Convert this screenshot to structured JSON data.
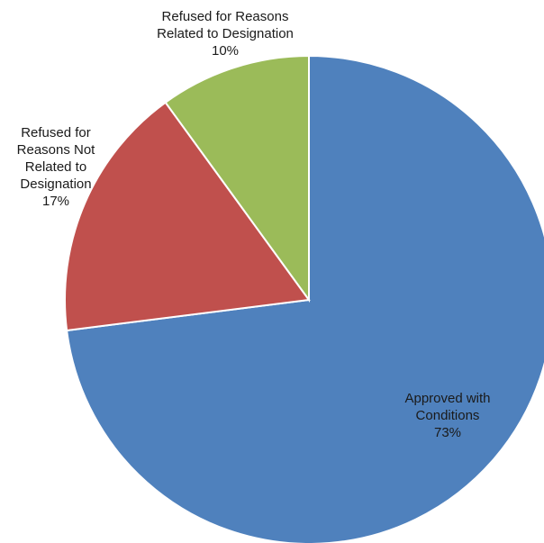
{
  "chart_data": {
    "type": "pie",
    "categories": [
      "Approved with Conditions",
      "Refused for Reasons Not Related to Designation",
      "Refused for Reasons Related to Designation"
    ],
    "values": [
      73,
      17,
      10
    ],
    "value_labels": [
      "73%",
      "17%",
      "10%"
    ],
    "colors": [
      "#4f81bd",
      "#c0504d",
      "#9bbb59"
    ]
  }
}
